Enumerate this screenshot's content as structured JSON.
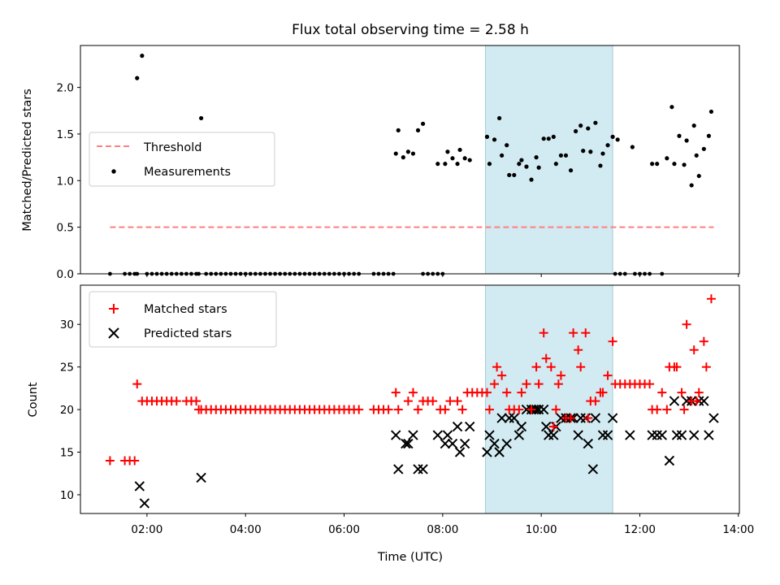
{
  "chart_data": {
    "type": "scatter",
    "title": "Flux total observing time = 2.58 h",
    "xlabel": "Time (UTC)",
    "xlim": [
      0.65,
      14.02
    ],
    "x_ticks": [
      {
        "value": 2,
        "label": "02:00"
      },
      {
        "value": 4,
        "label": "04:00"
      },
      {
        "value": 6,
        "label": "06:00"
      },
      {
        "value": 8,
        "label": "08:00"
      },
      {
        "value": 10,
        "label": "10:00"
      },
      {
        "value": 12,
        "label": "12:00"
      },
      {
        "value": 14,
        "label": "14:00"
      }
    ],
    "highlight_span": [
      8.87,
      11.45
    ],
    "colors": {
      "threshold": "#ff7f7f",
      "measurements": "#000000",
      "matched": "#ff0000",
      "predicted": "#000000",
      "span": "#add8e6"
    },
    "top": {
      "ylabel": "Matched/Predicted stars",
      "ylim": [
        0,
        2.45
      ],
      "y_ticks": [
        {
          "value": 0,
          "label": "0.0"
        },
        {
          "value": 0.5,
          "label": "0.5"
        },
        {
          "value": 1.0,
          "label": "1.0"
        },
        {
          "value": 1.5,
          "label": "1.5"
        },
        {
          "value": 2.0,
          "label": "2.0"
        }
      ],
      "threshold": {
        "name": "Threshold",
        "value": 0.5,
        "x_range": [
          1.25,
          13.5
        ]
      },
      "measurements_name": "Measurements",
      "zero_points_x": [
        1.25,
        1.55,
        1.65,
        1.75,
        1.8,
        2.0,
        2.1,
        2.2,
        2.3,
        2.4,
        2.5,
        2.6,
        2.7,
        2.8,
        2.9,
        3.0,
        3.05,
        3.2,
        3.3,
        3.4,
        3.5,
        3.6,
        3.7,
        3.8,
        3.9,
        4.0,
        4.1,
        4.2,
        4.3,
        4.4,
        4.5,
        4.6,
        4.7,
        4.8,
        4.9,
        5.0,
        5.1,
        5.2,
        5.3,
        5.4,
        5.5,
        5.6,
        5.7,
        5.8,
        5.9,
        6.0,
        6.1,
        6.2,
        6.3,
        6.6,
        6.7,
        6.8,
        6.9,
        7.0,
        7.6,
        7.7,
        7.8,
        7.9,
        8.0,
        11.5,
        11.6,
        11.7,
        11.9,
        12.0,
        12.1,
        12.2,
        12.45
      ],
      "points": [
        {
          "x": 1.8,
          "y": 2.1
        },
        {
          "x": 1.9,
          "y": 2.34
        },
        {
          "x": 3.1,
          "y": 1.67
        },
        {
          "x": 7.05,
          "y": 1.29
        },
        {
          "x": 7.1,
          "y": 1.54
        },
        {
          "x": 7.2,
          "y": 1.25
        },
        {
          "x": 7.3,
          "y": 1.31
        },
        {
          "x": 7.4,
          "y": 1.29
        },
        {
          "x": 7.5,
          "y": 1.54
        },
        {
          "x": 7.6,
          "y": 1.61
        },
        {
          "x": 7.9,
          "y": 1.18
        },
        {
          "x": 8.05,
          "y": 1.18
        },
        {
          "x": 8.1,
          "y": 1.31
        },
        {
          "x": 8.2,
          "y": 1.24
        },
        {
          "x": 8.3,
          "y": 1.18
        },
        {
          "x": 8.35,
          "y": 1.33
        },
        {
          "x": 8.45,
          "y": 1.24
        },
        {
          "x": 8.55,
          "y": 1.22
        },
        {
          "x": 8.9,
          "y": 1.47
        },
        {
          "x": 8.95,
          "y": 1.18
        },
        {
          "x": 9.05,
          "y": 1.44
        },
        {
          "x": 9.15,
          "y": 1.67
        },
        {
          "x": 9.2,
          "y": 1.27
        },
        {
          "x": 9.3,
          "y": 1.38
        },
        {
          "x": 9.35,
          "y": 1.06
        },
        {
          "x": 9.45,
          "y": 1.06
        },
        {
          "x": 9.55,
          "y": 1.18
        },
        {
          "x": 9.6,
          "y": 1.22
        },
        {
          "x": 9.7,
          "y": 1.15
        },
        {
          "x": 9.8,
          "y": 1.01
        },
        {
          "x": 9.9,
          "y": 1.25
        },
        {
          "x": 9.95,
          "y": 1.14
        },
        {
          "x": 10.05,
          "y": 1.45
        },
        {
          "x": 10.15,
          "y": 1.45
        },
        {
          "x": 10.25,
          "y": 1.47
        },
        {
          "x": 10.3,
          "y": 1.18
        },
        {
          "x": 10.4,
          "y": 1.27
        },
        {
          "x": 10.5,
          "y": 1.27
        },
        {
          "x": 10.6,
          "y": 1.11
        },
        {
          "x": 10.7,
          "y": 1.53
        },
        {
          "x": 10.8,
          "y": 1.59
        },
        {
          "x": 10.85,
          "y": 1.32
        },
        {
          "x": 10.95,
          "y": 1.56
        },
        {
          "x": 11.0,
          "y": 1.31
        },
        {
          "x": 11.1,
          "y": 1.62
        },
        {
          "x": 11.2,
          "y": 1.16
        },
        {
          "x": 11.25,
          "y": 1.29
        },
        {
          "x": 11.35,
          "y": 1.38
        },
        {
          "x": 11.45,
          "y": 1.47
        },
        {
          "x": 11.55,
          "y": 1.44
        },
        {
          "x": 11.85,
          "y": 1.36
        },
        {
          "x": 12.25,
          "y": 1.18
        },
        {
          "x": 12.35,
          "y": 1.18
        },
        {
          "x": 12.55,
          "y": 1.24
        },
        {
          "x": 12.65,
          "y": 1.79
        },
        {
          "x": 12.7,
          "y": 1.18
        },
        {
          "x": 12.8,
          "y": 1.48
        },
        {
          "x": 12.9,
          "y": 1.17
        },
        {
          "x": 12.95,
          "y": 1.43
        },
        {
          "x": 13.05,
          "y": 0.95
        },
        {
          "x": 13.1,
          "y": 1.59
        },
        {
          "x": 13.2,
          "y": 1.05
        },
        {
          "x": 13.3,
          "y": 1.34
        },
        {
          "x": 13.4,
          "y": 1.48
        },
        {
          "x": 13.45,
          "y": 1.74
        },
        {
          "x": 13.15,
          "y": 1.27
        }
      ]
    },
    "bottom": {
      "ylabel": "Count",
      "ylim": [
        7.8,
        34.6
      ],
      "y_ticks": [
        {
          "value": 10,
          "label": "10"
        },
        {
          "value": 15,
          "label": "15"
        },
        {
          "value": 20,
          "label": "20"
        },
        {
          "value": 25,
          "label": "25"
        },
        {
          "value": 30,
          "label": "30"
        }
      ],
      "matched_name": "Matched stars",
      "predicted_name": "Predicted stars",
      "matched_flat_20_x": [
        3.1,
        3.2,
        3.3,
        3.4,
        3.5,
        3.6,
        3.7,
        3.8,
        3.9,
        4.0,
        4.1,
        4.2,
        4.3,
        4.4,
        4.5,
        4.6,
        4.7,
        4.8,
        4.9,
        5.0,
        5.1,
        5.2,
        5.3,
        5.4,
        5.5,
        5.6,
        5.7,
        5.8,
        5.9,
        6.0,
        6.1,
        6.2,
        6.3,
        6.6,
        6.7,
        6.8,
        6.9
      ],
      "matched": [
        {
          "x": 1.25,
          "y": 14
        },
        {
          "x": 1.55,
          "y": 14
        },
        {
          "x": 1.65,
          "y": 14
        },
        {
          "x": 1.75,
          "y": 14
        },
        {
          "x": 1.8,
          "y": 23
        },
        {
          "x": 1.9,
          "y": 21
        },
        {
          "x": 2.0,
          "y": 21
        },
        {
          "x": 2.1,
          "y": 21
        },
        {
          "x": 2.2,
          "y": 21
        },
        {
          "x": 2.3,
          "y": 21
        },
        {
          "x": 2.4,
          "y": 21
        },
        {
          "x": 2.5,
          "y": 21
        },
        {
          "x": 2.6,
          "y": 21
        },
        {
          "x": 2.8,
          "y": 21
        },
        {
          "x": 2.9,
          "y": 21
        },
        {
          "x": 3.0,
          "y": 21
        },
        {
          "x": 3.05,
          "y": 20
        },
        {
          "x": 7.05,
          "y": 22
        },
        {
          "x": 7.1,
          "y": 20
        },
        {
          "x": 7.3,
          "y": 21
        },
        {
          "x": 7.4,
          "y": 22
        },
        {
          "x": 7.5,
          "y": 20
        },
        {
          "x": 7.6,
          "y": 21
        },
        {
          "x": 7.7,
          "y": 21
        },
        {
          "x": 7.8,
          "y": 21
        },
        {
          "x": 7.95,
          "y": 20
        },
        {
          "x": 8.05,
          "y": 20
        },
        {
          "x": 8.15,
          "y": 21
        },
        {
          "x": 8.3,
          "y": 21
        },
        {
          "x": 8.4,
          "y": 20
        },
        {
          "x": 8.5,
          "y": 22
        },
        {
          "x": 8.6,
          "y": 22
        },
        {
          "x": 8.7,
          "y": 22
        },
        {
          "x": 8.8,
          "y": 22
        },
        {
          "x": 8.9,
          "y": 22
        },
        {
          "x": 8.95,
          "y": 20
        },
        {
          "x": 9.05,
          "y": 23
        },
        {
          "x": 9.1,
          "y": 25
        },
        {
          "x": 9.2,
          "y": 24
        },
        {
          "x": 9.3,
          "y": 22
        },
        {
          "x": 9.35,
          "y": 20
        },
        {
          "x": 9.45,
          "y": 20
        },
        {
          "x": 9.55,
          "y": 20
        },
        {
          "x": 9.6,
          "y": 22
        },
        {
          "x": 9.7,
          "y": 23
        },
        {
          "x": 9.8,
          "y": 20
        },
        {
          "x": 9.9,
          "y": 25
        },
        {
          "x": 9.95,
          "y": 23
        },
        {
          "x": 10.05,
          "y": 29
        },
        {
          "x": 10.1,
          "y": 26
        },
        {
          "x": 10.2,
          "y": 25
        },
        {
          "x": 10.25,
          "y": 18
        },
        {
          "x": 10.3,
          "y": 20
        },
        {
          "x": 10.35,
          "y": 23
        },
        {
          "x": 10.4,
          "y": 24
        },
        {
          "x": 10.5,
          "y": 19
        },
        {
          "x": 10.6,
          "y": 19
        },
        {
          "x": 10.65,
          "y": 29
        },
        {
          "x": 10.75,
          "y": 27
        },
        {
          "x": 10.8,
          "y": 25
        },
        {
          "x": 10.9,
          "y": 29
        },
        {
          "x": 10.95,
          "y": 19
        },
        {
          "x": 11.0,
          "y": 21
        },
        {
          "x": 11.1,
          "y": 21
        },
        {
          "x": 11.2,
          "y": 22
        },
        {
          "x": 11.25,
          "y": 22
        },
        {
          "x": 11.35,
          "y": 24
        },
        {
          "x": 11.45,
          "y": 28
        },
        {
          "x": 11.5,
          "y": 23
        },
        {
          "x": 11.6,
          "y": 23
        },
        {
          "x": 11.7,
          "y": 23
        },
        {
          "x": 11.8,
          "y": 23
        },
        {
          "x": 11.9,
          "y": 23
        },
        {
          "x": 12.0,
          "y": 23
        },
        {
          "x": 12.1,
          "y": 23
        },
        {
          "x": 12.2,
          "y": 23
        },
        {
          "x": 12.25,
          "y": 20
        },
        {
          "x": 12.35,
          "y": 20
        },
        {
          "x": 12.45,
          "y": 22
        },
        {
          "x": 12.55,
          "y": 20
        },
        {
          "x": 12.6,
          "y": 25
        },
        {
          "x": 12.7,
          "y": 25
        },
        {
          "x": 12.75,
          "y": 25
        },
        {
          "x": 12.85,
          "y": 22
        },
        {
          "x": 12.9,
          "y": 20
        },
        {
          "x": 12.95,
          "y": 30
        },
        {
          "x": 13.05,
          "y": 21
        },
        {
          "x": 13.1,
          "y": 27
        },
        {
          "x": 13.15,
          "y": 21
        },
        {
          "x": 13.2,
          "y": 22
        },
        {
          "x": 13.3,
          "y": 28
        },
        {
          "x": 13.35,
          "y": 25
        },
        {
          "x": 13.45,
          "y": 33
        }
      ],
      "predicted": [
        {
          "x": 1.85,
          "y": 11
        },
        {
          "x": 1.95,
          "y": 9
        },
        {
          "x": 3.1,
          "y": 12
        },
        {
          "x": 7.05,
          "y": 17
        },
        {
          "x": 7.1,
          "y": 13
        },
        {
          "x": 7.25,
          "y": 16
        },
        {
          "x": 7.3,
          "y": 16
        },
        {
          "x": 7.4,
          "y": 17
        },
        {
          "x": 7.5,
          "y": 13
        },
        {
          "x": 7.6,
          "y": 13
        },
        {
          "x": 7.9,
          "y": 17
        },
        {
          "x": 8.05,
          "y": 16
        },
        {
          "x": 8.1,
          "y": 17
        },
        {
          "x": 8.2,
          "y": 16
        },
        {
          "x": 8.3,
          "y": 18
        },
        {
          "x": 8.35,
          "y": 15
        },
        {
          "x": 8.45,
          "y": 16
        },
        {
          "x": 8.55,
          "y": 18
        },
        {
          "x": 8.9,
          "y": 15
        },
        {
          "x": 8.95,
          "y": 17
        },
        {
          "x": 9.05,
          "y": 16
        },
        {
          "x": 9.15,
          "y": 15
        },
        {
          "x": 9.2,
          "y": 19
        },
        {
          "x": 9.3,
          "y": 16
        },
        {
          "x": 9.35,
          "y": 19
        },
        {
          "x": 9.45,
          "y": 19
        },
        {
          "x": 9.55,
          "y": 17
        },
        {
          "x": 9.6,
          "y": 18
        },
        {
          "x": 9.7,
          "y": 20
        },
        {
          "x": 9.8,
          "y": 20
        },
        {
          "x": 9.85,
          "y": 20
        },
        {
          "x": 9.9,
          "y": 20
        },
        {
          "x": 9.95,
          "y": 20
        },
        {
          "x": 10.05,
          "y": 20
        },
        {
          "x": 10.1,
          "y": 18
        },
        {
          "x": 10.15,
          "y": 17
        },
        {
          "x": 10.25,
          "y": 17
        },
        {
          "x": 10.3,
          "y": 18
        },
        {
          "x": 10.4,
          "y": 19
        },
        {
          "x": 10.5,
          "y": 19
        },
        {
          "x": 10.6,
          "y": 19
        },
        {
          "x": 10.65,
          "y": 19
        },
        {
          "x": 10.75,
          "y": 17
        },
        {
          "x": 10.8,
          "y": 19
        },
        {
          "x": 10.9,
          "y": 19
        },
        {
          "x": 10.95,
          "y": 16
        },
        {
          "x": 11.05,
          "y": 13
        },
        {
          "x": 11.1,
          "y": 19
        },
        {
          "x": 11.25,
          "y": 17
        },
        {
          "x": 11.35,
          "y": 17
        },
        {
          "x": 11.45,
          "y": 19
        },
        {
          "x": 11.8,
          "y": 17
        },
        {
          "x": 12.25,
          "y": 17
        },
        {
          "x": 12.35,
          "y": 17
        },
        {
          "x": 12.45,
          "y": 17
        },
        {
          "x": 12.6,
          "y": 14
        },
        {
          "x": 12.7,
          "y": 21
        },
        {
          "x": 12.75,
          "y": 17
        },
        {
          "x": 12.85,
          "y": 17
        },
        {
          "x": 12.95,
          "y": 21
        },
        {
          "x": 13.05,
          "y": 21
        },
        {
          "x": 13.1,
          "y": 17
        },
        {
          "x": 13.2,
          "y": 21
        },
        {
          "x": 13.3,
          "y": 21
        },
        {
          "x": 13.4,
          "y": 17
        },
        {
          "x": 13.5,
          "y": 19
        }
      ]
    }
  }
}
